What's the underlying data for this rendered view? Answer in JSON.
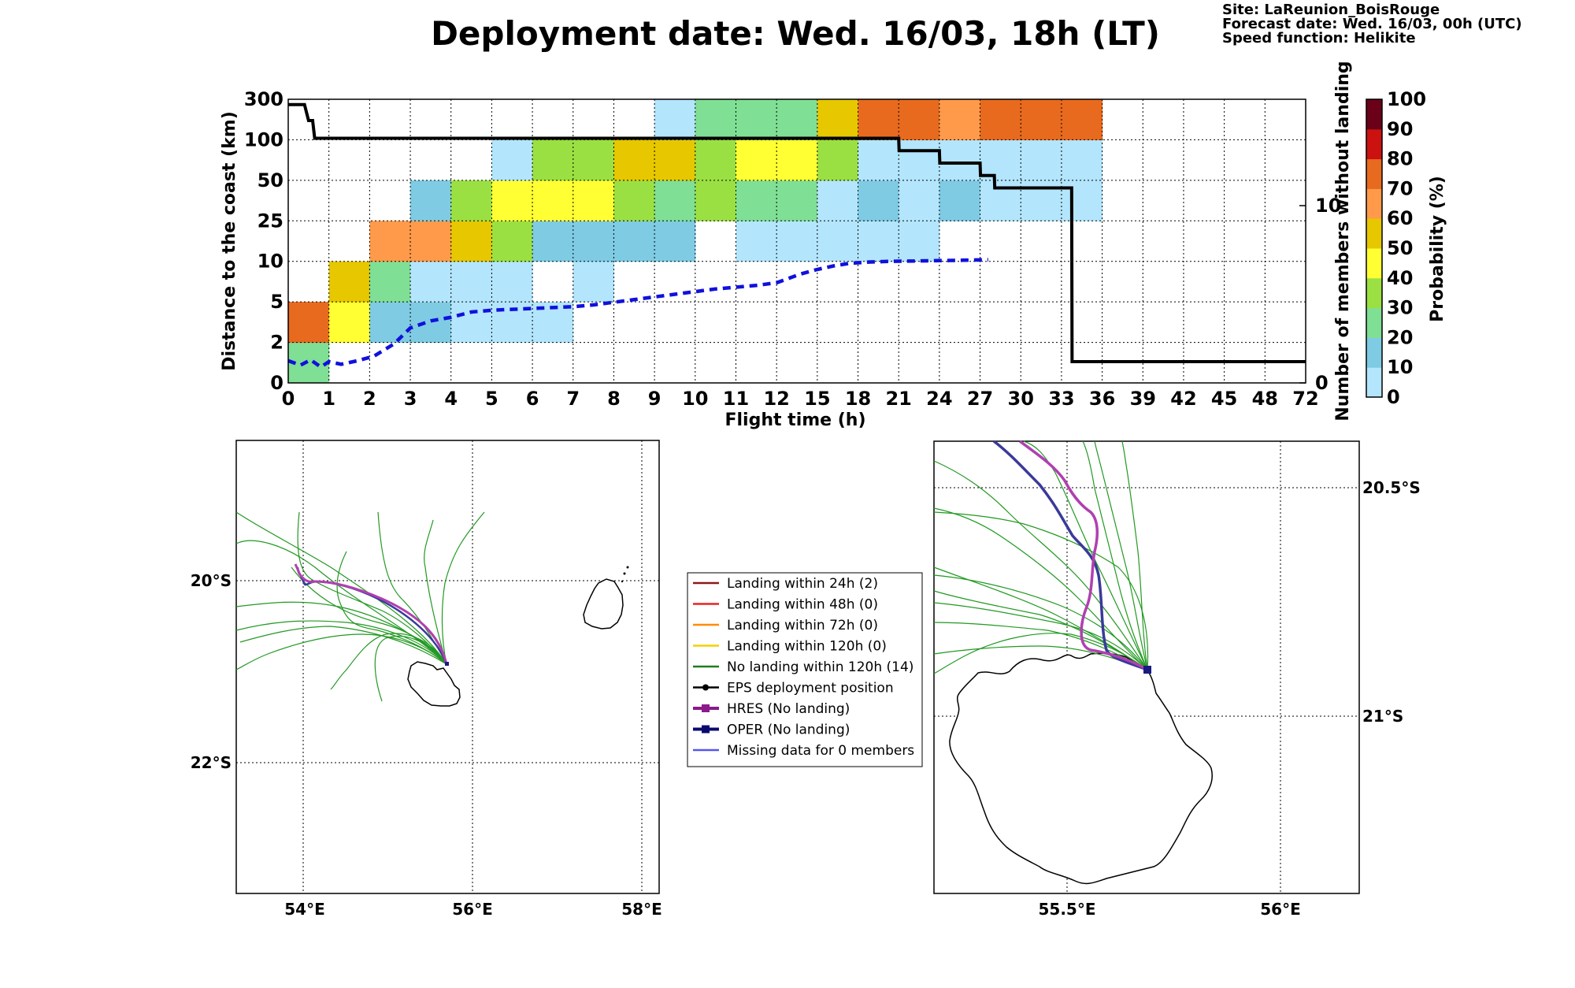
{
  "title": "Deployment date: Wed. 16/03, 18h (LT)",
  "meta": {
    "site": "Site: LaReunion_BoisRouge",
    "forecast": "Forecast date: Wed. 16/03, 00h (UTC)",
    "speed": "Speed function: Helikite"
  },
  "chart_data": [
    {
      "type": "heatmap",
      "xlabel": "Flight time (h)",
      "ylabel": "Distance to the coast (km)",
      "ylabel_right": "Number of members without landing",
      "x_ticks": [
        "0",
        "1",
        "2",
        "3",
        "4",
        "5",
        "6",
        "7",
        "8",
        "9",
        "10",
        "11",
        "12",
        "15",
        "18",
        "21",
        "24",
        "27",
        "30",
        "33",
        "36",
        "39",
        "42",
        "45",
        "48",
        "72"
      ],
      "y_ticks": [
        "0",
        "2",
        "5",
        "10",
        "25",
        "50",
        "100",
        "300"
      ],
      "right_ticks": [
        "0",
        "10"
      ],
      "right_ylim": [
        0,
        16
      ],
      "colorbar": {
        "label": "Probability (%)",
        "ticks": [
          "0",
          "10",
          "20",
          "30",
          "40",
          "50",
          "60",
          "70",
          "80",
          "90",
          "100"
        ],
        "colors": [
          "#b3e5fc",
          "#7ecbe3",
          "#7fdf94",
          "#9be042",
          "#ffff33",
          "#e6c700",
          "#ff9a4a",
          "#e86a1e",
          "#cc1111",
          "#99001a",
          "#6b0019"
        ]
      },
      "cells_note": "cells are [x_bin_index, y_bin_index, probability_percent]",
      "cells": [
        [
          0,
          0,
          20
        ],
        [
          0,
          1,
          70
        ],
        [
          1,
          1,
          40
        ],
        [
          1,
          2,
          50
        ],
        [
          2,
          1,
          10
        ],
        [
          2,
          2,
          20
        ],
        [
          2,
          3,
          60
        ],
        [
          3,
          1,
          10
        ],
        [
          3,
          2,
          0
        ],
        [
          3,
          3,
          60
        ],
        [
          3,
          4,
          10
        ],
        [
          4,
          1,
          0
        ],
        [
          4,
          2,
          0
        ],
        [
          4,
          3,
          50
        ],
        [
          4,
          4,
          30
        ],
        [
          5,
          1,
          0
        ],
        [
          5,
          2,
          0
        ],
        [
          5,
          3,
          30
        ],
        [
          5,
          4,
          40
        ],
        [
          5,
          5,
          0
        ],
        [
          6,
          1,
          0
        ],
        [
          6,
          3,
          10
        ],
        [
          6,
          4,
          40
        ],
        [
          6,
          5,
          30
        ],
        [
          7,
          2,
          0
        ],
        [
          7,
          3,
          10
        ],
        [
          7,
          4,
          40
        ],
        [
          7,
          5,
          30
        ],
        [
          8,
          3,
          10
        ],
        [
          8,
          4,
          30
        ],
        [
          8,
          5,
          50
        ],
        [
          9,
          3,
          10
        ],
        [
          9,
          4,
          20
        ],
        [
          9,
          5,
          50
        ],
        [
          9,
          6,
          0
        ],
        [
          10,
          4,
          30
        ],
        [
          10,
          5,
          30
        ],
        [
          10,
          6,
          20
        ],
        [
          11,
          3,
          0
        ],
        [
          11,
          4,
          20
        ],
        [
          11,
          5,
          40
        ],
        [
          11,
          6,
          20
        ],
        [
          12,
          3,
          0
        ],
        [
          12,
          4,
          20
        ],
        [
          12,
          5,
          40
        ],
        [
          12,
          6,
          20
        ],
        [
          13,
          3,
          0
        ],
        [
          13,
          4,
          0
        ],
        [
          13,
          5,
          30
        ],
        [
          13,
          6,
          50
        ],
        [
          14,
          3,
          0
        ],
        [
          14,
          4,
          10
        ],
        [
          14,
          5,
          0
        ],
        [
          14,
          6,
          70
        ],
        [
          15,
          3,
          0
        ],
        [
          15,
          4,
          0
        ],
        [
          15,
          5,
          0
        ],
        [
          15,
          6,
          70
        ],
        [
          16,
          4,
          10
        ],
        [
          16,
          5,
          0
        ],
        [
          16,
          6,
          60
        ],
        [
          17,
          4,
          0
        ],
        [
          17,
          5,
          0
        ],
        [
          17,
          6,
          70
        ],
        [
          18,
          4,
          0
        ],
        [
          18,
          5,
          0
        ],
        [
          18,
          6,
          70
        ],
        [
          19,
          4,
          0
        ],
        [
          19,
          5,
          0
        ],
        [
          19,
          6,
          70
        ]
      ],
      "series": [
        {
          "style": "black solid",
          "x": [
            0,
            0.4,
            0.5,
            0.6,
            0.65,
            15,
            15.01,
            16,
            16.01,
            17,
            17.01,
            17.35,
            17.36,
            19.25,
            19.26,
            25
          ],
          "y": [
            15.7,
            15.7,
            14.8,
            14.8,
            13.8,
            13.8,
            13.1,
            13.1,
            12.4,
            12.4,
            11.7,
            11.7,
            11.0,
            11.0,
            1.2,
            1.2
          ]
        },
        {
          "style": "blue dashed",
          "x": [
            0,
            0.3,
            0.55,
            0.8,
            1.0,
            1.3,
            1.7,
            2.1,
            2.6,
            3.0,
            3.5,
            4.0,
            4.5,
            5.0,
            5.5,
            6.0,
            6.5,
            7.0,
            7.5,
            8.0,
            8.5,
            9.0,
            9.5,
            10.0,
            10.5,
            11.0,
            11.5,
            12.0,
            12.3,
            12.6,
            13.0,
            13.4,
            13.8,
            14.3,
            14.8,
            15.4,
            16.0,
            16.6,
            17.2
          ],
          "y": [
            1.25,
            1.0,
            1.3,
            0.9,
            1.2,
            1.05,
            1.25,
            1.5,
            2.2,
            3.1,
            3.5,
            3.7,
            4.0,
            4.1,
            4.15,
            4.2,
            4.25,
            4.3,
            4.4,
            4.55,
            4.7,
            4.85,
            5.0,
            5.15,
            5.3,
            5.4,
            5.5,
            5.65,
            5.9,
            6.15,
            6.4,
            6.6,
            6.75,
            6.82,
            6.86,
            6.88,
            6.9,
            6.92,
            6.95
          ]
        }
      ]
    }
  ],
  "maps": {
    "left": {
      "x_ticks": [
        "54°E",
        "56°E",
        "58°E"
      ],
      "y_ticks": [
        "20°S",
        "22°S"
      ]
    },
    "right": {
      "x_ticks": [
        "55.5°E",
        "56°E"
      ],
      "y_ticks": [
        "20.5°S",
        "21°S"
      ]
    }
  },
  "legend": {
    "items": [
      {
        "label": "Landing within 24h (2)",
        "color": "#8b1a1a",
        "marker": "none"
      },
      {
        "label": "Landing within 48h (0)",
        "color": "#ee2222",
        "marker": "none"
      },
      {
        "label": "Landing within 72h (0)",
        "color": "#ff8c00",
        "marker": "none"
      },
      {
        "label": "Landing within 120h (0)",
        "color": "#f5d000",
        "marker": "none"
      },
      {
        "label": "No landing within 120h (14)",
        "color": "#1e7d1e",
        "marker": "none"
      },
      {
        "label": "EPS deployment position",
        "color": "#000000",
        "marker": "circle"
      },
      {
        "label": "HRES (No landing)",
        "color": "#8b1a8b",
        "marker": "square",
        "width": 4
      },
      {
        "label": "OPER (No landing)",
        "color": "#0a0a6e",
        "marker": "square",
        "width": 4
      },
      {
        "label": "Missing data for 0 members",
        "color": "#5555ee",
        "marker": "none"
      }
    ]
  },
  "colors": {
    "ensemble": "#229922",
    "hres": "#b040b0",
    "oper": "#3a3a9a",
    "deploy_marker": "#1a1a80"
  }
}
